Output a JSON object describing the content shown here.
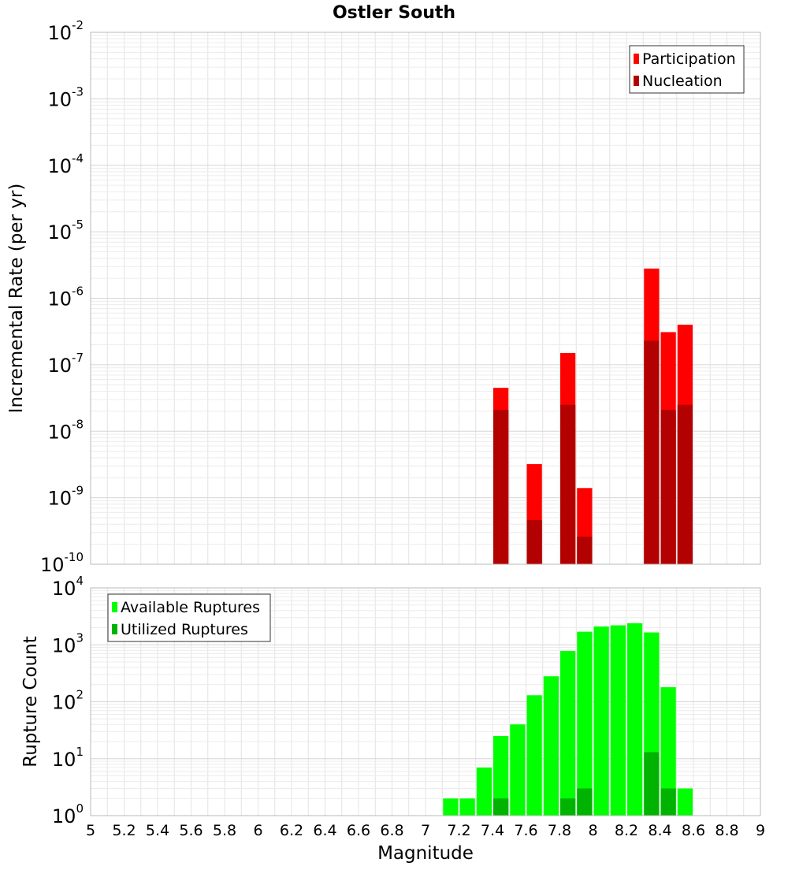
{
  "title": "Ostler South",
  "xlabel": "Magnitude",
  "x_ticks": [
    "5",
    "5.2",
    "5.4",
    "5.6",
    "5.8",
    "6",
    "6.2",
    "6.4",
    "6.6",
    "6.8",
    "7",
    "7.2",
    "7.4",
    "7.6",
    "7.8",
    "8",
    "8.2",
    "8.4",
    "8.6",
    "8.8",
    "9"
  ],
  "colors": {
    "participation": "#ff0000",
    "nucleation": "#b30000",
    "available": "#00ff00",
    "utilized": "#00b300"
  },
  "chart_data": [
    {
      "type": "bar",
      "scale": "log",
      "ylabel": "Incremental Rate (per yr)",
      "xlim": [
        5,
        9
      ],
      "ylim_exponents": [
        -10,
        -2
      ],
      "bin_width": 0.1,
      "legend_position": "top-right",
      "series": [
        {
          "name": "Participation",
          "x": [
            7.45,
            7.65,
            7.85,
            7.95,
            8.35,
            8.45,
            8.55
          ],
          "values": [
            4.5e-08,
            3.2e-09,
            1.5e-07,
            1.4e-09,
            2.8e-06,
            3.1e-07,
            4e-07
          ]
        },
        {
          "name": "Nucleation",
          "x": [
            7.45,
            7.65,
            7.85,
            7.95,
            8.35,
            8.45,
            8.55
          ],
          "values": [
            2.1e-08,
            4.6e-10,
            2.5e-08,
            2.6e-10,
            2.3e-07,
            2.1e-08,
            2.5e-08
          ]
        }
      ]
    },
    {
      "type": "bar",
      "scale": "log",
      "ylabel": "Rupture Count",
      "xlim": [
        5,
        9
      ],
      "ylim_exponents": [
        0,
        4
      ],
      "bin_width": 0.1,
      "legend_position": "top-left",
      "series": [
        {
          "name": "Available Ruptures",
          "x": [
            7.15,
            7.25,
            7.35,
            7.45,
            7.55,
            7.65,
            7.75,
            7.85,
            7.95,
            8.05,
            8.15,
            8.25,
            8.35,
            8.45,
            8.55
          ],
          "values": [
            2,
            2,
            7,
            25,
            40,
            130,
            280,
            780,
            1700,
            2100,
            2200,
            2400,
            1650,
            180,
            3
          ]
        },
        {
          "name": "Utilized Ruptures",
          "x": [
            7.45,
            7.65,
            7.75,
            7.85,
            7.95,
            8.15,
            8.35,
            8.45,
            8.55
          ],
          "values": [
            2,
            1,
            1,
            2,
            3,
            1,
            13,
            3,
            1
          ]
        }
      ]
    }
  ]
}
